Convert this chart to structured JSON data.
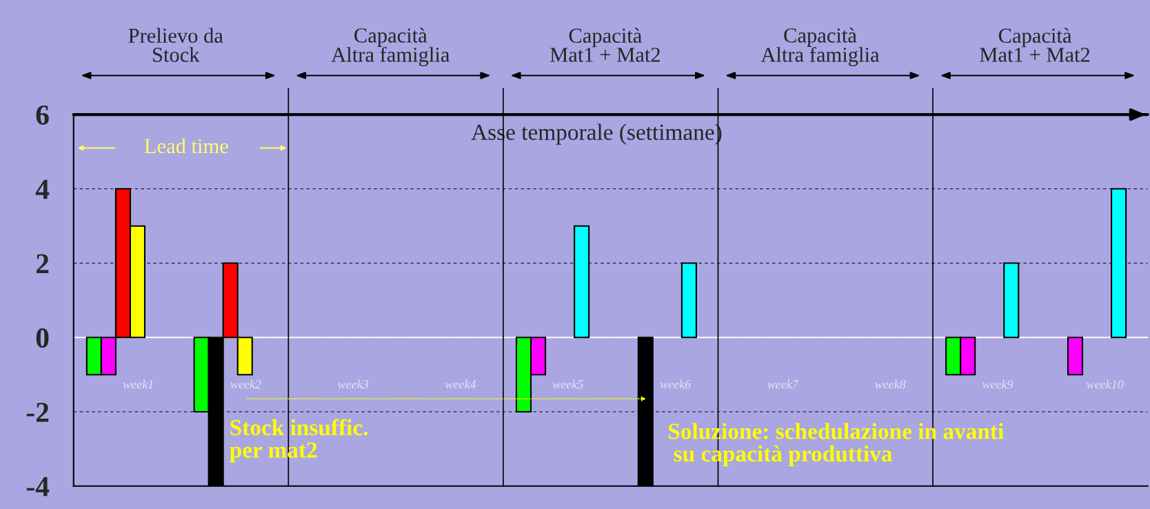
{
  "chart_data": {
    "type": "bar",
    "xlabel": "Asse temporale (settimane)",
    "categories": [
      "week1",
      "week2",
      "week3",
      "week4",
      "week5",
      "week6",
      "week7",
      "week8",
      "week9",
      "week10"
    ],
    "series": [
      {
        "color": "#00ff00",
        "values": [
          -1,
          -2,
          null,
          null,
          -2,
          null,
          null,
          null,
          -1,
          null
        ]
      },
      {
        "color": "#ff00ff",
        "colors": [
          null,
          "#000000",
          null,
          null,
          null,
          "#000000",
          null,
          null,
          null,
          null
        ],
        "values": [
          -1,
          -4,
          null,
          null,
          -1,
          -4,
          null,
          null,
          -1,
          -1
        ]
      },
      {
        "color": "#ff0000",
        "values": [
          4,
          2,
          null,
          null,
          null,
          null,
          null,
          null,
          null,
          null
        ]
      },
      {
        "color": "#ffff00",
        "values": [
          3,
          -1,
          null,
          null,
          null,
          null,
          null,
          null,
          null,
          null
        ]
      },
      {
        "color": "#00ffff",
        "values": [
          null,
          null,
          null,
          null,
          3,
          2,
          null,
          null,
          2,
          4
        ]
      }
    ],
    "ylim": [
      -4,
      6
    ],
    "yticks": [
      -4,
      -2,
      0,
      2,
      4,
      6
    ],
    "grid": "y",
    "ref_lines": [
      {
        "axis": "y",
        "value": 0,
        "color": "#ffffff"
      },
      {
        "axis": "y",
        "value": 6,
        "color": "#000000"
      }
    ],
    "annotations": [
      "Prelievo da\nStock",
      "Capacità\nAltra famiglia",
      "Capacità\nMat1 + Mat2",
      "Capacità\nAltra famiglia",
      "Capacità\nMat1 + Mat2",
      "Lead time",
      "Stock insuffic.\nper mat2",
      "Soluzione: schedulazione in avanti\n su capacità produttiva"
    ]
  }
}
